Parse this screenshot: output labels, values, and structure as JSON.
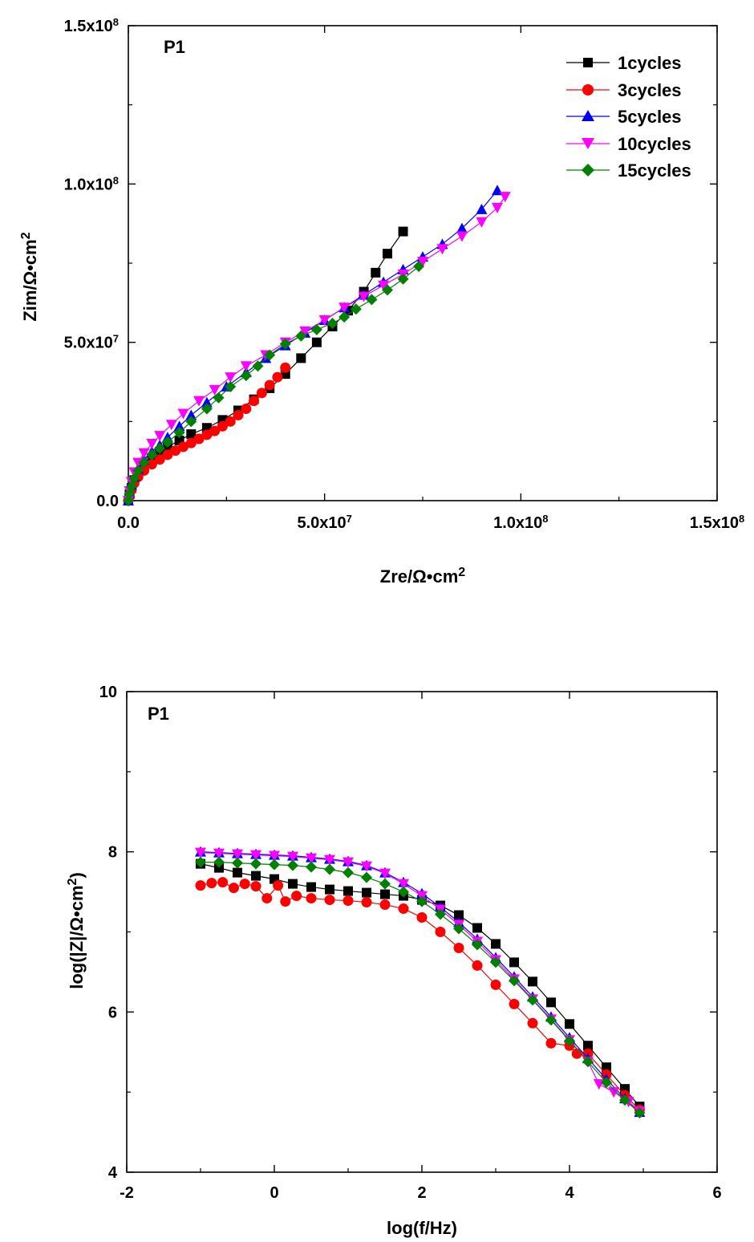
{
  "chart_data": [
    {
      "type": "scatter",
      "panel_label": "P1",
      "xlabel": "Zre/Ω•cm",
      "xlabel_sup": "2",
      "ylabel": "Zim/Ω•cm",
      "ylabel_sup": "2",
      "xlim": [
        0,
        150000000
      ],
      "ylim": [
        0,
        150000000
      ],
      "x_ticks": [
        {
          "value": 0,
          "label": "0.0",
          "exp": ""
        },
        {
          "value": 50000000,
          "label": "5.0x10",
          "exp": "7"
        },
        {
          "value": 100000000,
          "label": "1.0x10",
          "exp": "8"
        },
        {
          "value": 150000000,
          "label": "1.5x10",
          "exp": "8"
        }
      ],
      "y_ticks": [
        {
          "value": 0,
          "label": "0.0",
          "exp": ""
        },
        {
          "value": 50000000,
          "label": "5.0x10",
          "exp": "7"
        },
        {
          "value": 100000000,
          "label": "1.0x10",
          "exp": "8"
        },
        {
          "value": 150000000,
          "label": "1.5x10",
          "exp": "8"
        }
      ],
      "legend_position": "top-right",
      "grid": false,
      "series": [
        {
          "name": "1cycles",
          "color": "#000000",
          "marker": "square",
          "x": [
            0,
            300000,
            800000,
            1500000,
            2500000,
            4000000,
            6000000,
            8000000,
            10000000,
            13000000,
            16000000,
            20000000,
            24000000,
            28000000,
            32000000,
            36000000,
            40000000,
            44000000,
            48000000,
            52000000,
            56000000,
            60000000,
            63000000,
            66000000,
            70000000
          ],
          "y": [
            0,
            2000000,
            4000000,
            6500000,
            9000000,
            11500000,
            13500000,
            15500000,
            17000000,
            19000000,
            21000000,
            23000000,
            25500000,
            28500000,
            32000000,
            35500000,
            40000000,
            45000000,
            50000000,
            55000000,
            60000000,
            66000000,
            72000000,
            78000000,
            85000000
          ]
        },
        {
          "name": "3cycles",
          "color": "#ff0000",
          "marker": "circle",
          "x": [
            0,
            300000,
            800000,
            1500000,
            2500000,
            4000000,
            6000000,
            8000000,
            10000000,
            12000000,
            14000000,
            16000000,
            18000000,
            20000000,
            22000000,
            24000000,
            26000000,
            28000000,
            30000000,
            32000000,
            34000000,
            36000000,
            38000000,
            40000000
          ],
          "y": [
            0,
            1800000,
            3500000,
            5500000,
            7500000,
            9500000,
            11500000,
            13000000,
            14500000,
            15800000,
            17000000,
            18200000,
            19500000,
            20800000,
            22000000,
            23500000,
            25000000,
            27000000,
            29000000,
            31500000,
            34000000,
            36500000,
            39000000,
            42000000
          ]
        },
        {
          "name": "5cycles",
          "color": "#0000ff",
          "marker": "triangle-up",
          "x": [
            0,
            300000,
            800000,
            1500000,
            2500000,
            4000000,
            6000000,
            8000000,
            10000000,
            13000000,
            16000000,
            20000000,
            25000000,
            30000000,
            35000000,
            40000000,
            45000000,
            50000000,
            55000000,
            60000000,
            65000000,
            70000000,
            75000000,
            80000000,
            85000000,
            90000000,
            94000000
          ],
          "y": [
            0,
            2500000,
            5000000,
            7500000,
            10000000,
            13000000,
            15500000,
            17500000,
            20000000,
            23500000,
            27000000,
            31000000,
            36000000,
            40500000,
            45000000,
            49000000,
            53000000,
            57000000,
            61000000,
            65000000,
            69000000,
            73000000,
            77000000,
            81000000,
            86000000,
            92000000,
            98000000
          ]
        },
        {
          "name": "10cycles",
          "color": "#ff00ff",
          "marker": "triangle-down",
          "x": [
            0,
            300000,
            800000,
            1500000,
            2500000,
            4000000,
            6000000,
            8000000,
            11000000,
            14000000,
            18000000,
            22000000,
            26000000,
            30000000,
            35000000,
            40000000,
            45000000,
            50000000,
            55000000,
            60000000,
            65000000,
            70000000,
            75000000,
            80000000,
            85000000,
            90000000,
            94000000,
            96000000
          ],
          "y": [
            0,
            3000000,
            6000000,
            9000000,
            12000000,
            15000000,
            18000000,
            20500000,
            24000000,
            27500000,
            31500000,
            35000000,
            39000000,
            42500000,
            46000000,
            50000000,
            53500000,
            57000000,
            61000000,
            64500000,
            68000000,
            71500000,
            75500000,
            79500000,
            83500000,
            88000000,
            92500000,
            96000000
          ]
        },
        {
          "name": "15cycles",
          "color": "#008000",
          "marker": "diamond",
          "x": [
            0,
            300000,
            800000,
            1500000,
            2500000,
            4000000,
            6000000,
            8000000,
            10000000,
            13000000,
            16000000,
            20000000,
            23000000,
            26000000,
            30000000,
            33000000,
            36000000,
            40000000,
            44000000,
            48000000,
            52000000,
            55000000,
            58000000,
            62000000,
            66000000,
            70000000,
            74000000
          ],
          "y": [
            0,
            2200000,
            4500000,
            7000000,
            9500000,
            12000000,
            14500000,
            16500000,
            18500000,
            21500000,
            25000000,
            29000000,
            32500000,
            36000000,
            39500000,
            42500000,
            46000000,
            49500000,
            52000000,
            54000000,
            56000000,
            58000000,
            60500000,
            63500000,
            66500000,
            70000000,
            74000000
          ]
        }
      ]
    },
    {
      "type": "scatter",
      "panel_label": "P1",
      "xlabel": "log(f/Hz)",
      "ylabel": "log(|Z|/Ω•cm",
      "ylabel_sup": "2",
      "ylabel_suffix": ")",
      "xlim": [
        -2,
        6
      ],
      "ylim": [
        4,
        10
      ],
      "x_ticks": [
        {
          "value": -2,
          "label": "-2"
        },
        {
          "value": 0,
          "label": "0"
        },
        {
          "value": 2,
          "label": "2"
        },
        {
          "value": 4,
          "label": "4"
        },
        {
          "value": 6,
          "label": "6"
        }
      ],
      "y_ticks": [
        {
          "value": 4,
          "label": "4"
        },
        {
          "value": 6,
          "label": "6"
        },
        {
          "value": 8,
          "label": "8"
        },
        {
          "value": 10,
          "label": "10"
        }
      ],
      "grid": false,
      "series": [
        {
          "name": "1cycles",
          "color": "#000000",
          "marker": "square",
          "x": [
            -1,
            -0.75,
            -0.5,
            -0.25,
            0,
            0.25,
            0.5,
            0.75,
            1,
            1.25,
            1.5,
            1.75,
            2,
            2.25,
            2.5,
            2.75,
            3,
            3.25,
            3.5,
            3.75,
            4,
            4.25,
            4.5,
            4.75,
            4.95
          ],
          "y": [
            7.85,
            7.8,
            7.74,
            7.7,
            7.66,
            7.6,
            7.56,
            7.53,
            7.51,
            7.49,
            7.47,
            7.45,
            7.4,
            7.33,
            7.21,
            7.05,
            6.85,
            6.62,
            6.38,
            6.12,
            5.85,
            5.58,
            5.31,
            5.04,
            4.82
          ]
        },
        {
          "name": "3cycles",
          "color": "#ff0000",
          "marker": "circle",
          "x": [
            -1,
            -0.85,
            -0.7,
            -0.55,
            -0.4,
            -0.25,
            -0.1,
            0.05,
            0.15,
            0.3,
            0.5,
            0.75,
            1,
            1.25,
            1.5,
            1.75,
            2,
            2.25,
            2.5,
            2.75,
            3,
            3.25,
            3.5,
            3.75,
            4,
            4.1,
            4.25,
            4.5,
            4.75,
            4.95
          ],
          "y": [
            7.58,
            7.61,
            7.62,
            7.55,
            7.6,
            7.57,
            7.42,
            7.58,
            7.38,
            7.45,
            7.42,
            7.4,
            7.39,
            7.37,
            7.34,
            7.29,
            7.18,
            7.0,
            6.8,
            6.58,
            6.34,
            6.1,
            5.86,
            5.61,
            5.58,
            5.48,
            5.48,
            5.22,
            4.96,
            4.78
          ]
        },
        {
          "name": "5cycles",
          "color": "#0000ff",
          "marker": "triangle-up",
          "x": [
            -1,
            -0.75,
            -0.5,
            -0.25,
            0,
            0.25,
            0.5,
            0.75,
            1,
            1.25,
            1.5,
            1.75,
            2,
            2.25,
            2.5,
            2.75,
            3,
            3.25,
            3.5,
            3.75,
            4,
            4.25,
            4.5,
            4.75,
            4.95
          ],
          "y": [
            8.0,
            7.99,
            7.98,
            7.97,
            7.96,
            7.95,
            7.93,
            7.91,
            7.88,
            7.83,
            7.74,
            7.62,
            7.48,
            7.31,
            7.12,
            6.91,
            6.68,
            6.44,
            6.19,
            5.94,
            5.68,
            5.42,
            5.16,
            4.92,
            4.75
          ]
        },
        {
          "name": "10cycles",
          "color": "#ff00ff",
          "marker": "triangle-down",
          "x": [
            -1,
            -0.75,
            -0.5,
            -0.25,
            0,
            0.25,
            0.5,
            0.75,
            1,
            1.25,
            1.5,
            1.75,
            2,
            2.25,
            2.5,
            2.75,
            3,
            3.25,
            3.5,
            3.75,
            4,
            4.25,
            4.4,
            4.6,
            4.8,
            4.95
          ],
          "y": [
            7.99,
            7.98,
            7.97,
            7.96,
            7.95,
            7.94,
            7.92,
            7.9,
            7.87,
            7.82,
            7.73,
            7.6,
            7.45,
            7.28,
            7.09,
            6.88,
            6.65,
            6.41,
            6.16,
            5.91,
            5.65,
            5.38,
            5.1,
            5.0,
            4.88,
            4.76
          ]
        },
        {
          "name": "15cycles",
          "color": "#008000",
          "marker": "diamond",
          "x": [
            -1,
            -0.75,
            -0.5,
            -0.25,
            0,
            0.25,
            0.5,
            0.75,
            1,
            1.25,
            1.5,
            1.75,
            2,
            2.25,
            2.5,
            2.75,
            3,
            3.25,
            3.5,
            3.75,
            4,
            4.25,
            4.5,
            4.75,
            4.95
          ],
          "y": [
            7.87,
            7.87,
            7.86,
            7.85,
            7.84,
            7.83,
            7.81,
            7.78,
            7.74,
            7.68,
            7.6,
            7.5,
            7.38,
            7.22,
            7.04,
            6.84,
            6.62,
            6.39,
            6.15,
            5.9,
            5.64,
            5.38,
            5.12,
            4.9,
            4.74
          ]
        }
      ]
    }
  ]
}
